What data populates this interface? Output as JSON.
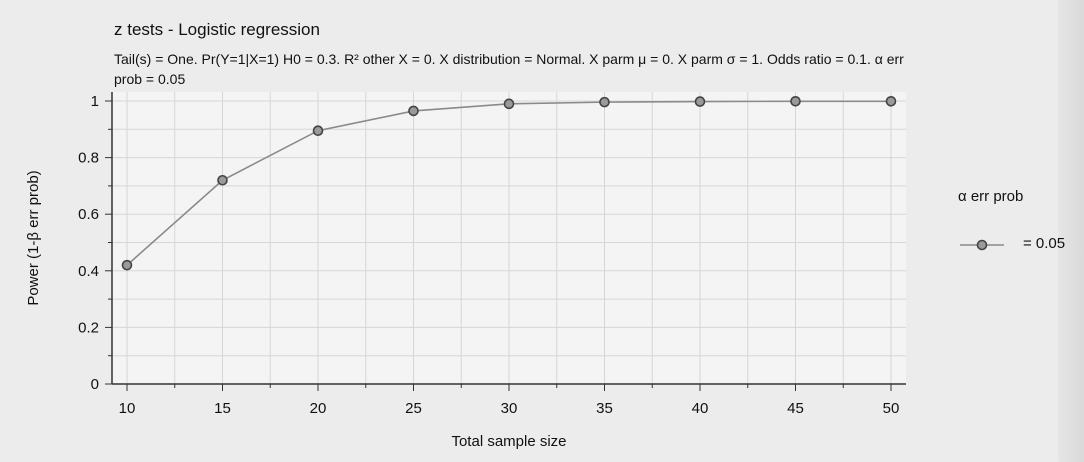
{
  "chart_data": {
    "type": "line",
    "title": "z tests - Logistic regression",
    "subtitle": "Tail(s) = One. Pr(Y=1|X=1) H0 = 0.3. R² other X = 0. X distribution = Normal. X parm μ = 0. X parm σ = 1. Odds ratio = 0.1. α err prob = 0.05",
    "xlabel": "Total sample size",
    "ylabel": "Power (1-β err prob)",
    "x": [
      10,
      15,
      20,
      25,
      30,
      35,
      40,
      45,
      50
    ],
    "series": [
      {
        "name": "= 0.05",
        "values": [
          0.42,
          0.72,
          0.895,
          0.965,
          0.99,
          0.996,
          0.998,
          0.999,
          0.999
        ]
      }
    ],
    "xlim": [
      10,
      50
    ],
    "ylim": [
      0,
      1
    ],
    "x_ticks": [
      "10",
      "15",
      "20",
      "25",
      "30",
      "35",
      "40",
      "45",
      "50"
    ],
    "y_ticks": [
      "0",
      "0.2",
      "0.4",
      "0.6",
      "0.8",
      "1"
    ],
    "legend_title": "α err prob",
    "legend_position": "right",
    "grid": true,
    "colors": {
      "line": "#8a8a8a",
      "marker_fill": "#9a9a9a",
      "marker_stroke": "#444444",
      "grid": "#d6d6d6",
      "plot_bg": "#f4f4f4",
      "axis": "#333333"
    }
  }
}
